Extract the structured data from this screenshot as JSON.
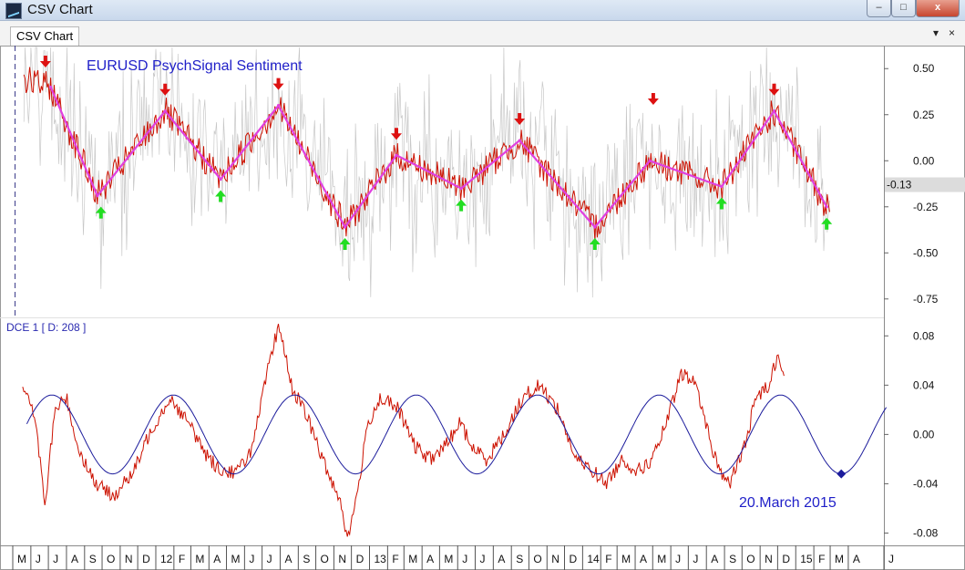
{
  "window": {
    "title": "CSV Chart",
    "tab_label": "CSV Chart",
    "min_label": "–",
    "max_label": "□",
    "close_label": "x",
    "menu_label": "▾",
    "tab_close_label": "×"
  },
  "icons": {
    "app": "chart-app-icon",
    "down_arrow": "red-down-arrow-icon",
    "up_arrow": "green-up-arrow-icon"
  },
  "colors": {
    "sentiment": "#cc1100",
    "zigzag": "#e040e0",
    "raw": "#c8c8c8",
    "cycle": "#1c1c9c",
    "down_arrow": "#dd1111",
    "up_arrow": "#22dd22",
    "title": "#1f1fc8"
  },
  "chart_data": {
    "type": "line",
    "title": "EURUSD PsychSignal Sentiment",
    "x_axis": {
      "labels": [
        "M",
        "J",
        "J",
        "A",
        "S",
        "O",
        "N",
        "D",
        "12",
        "F",
        "M",
        "A",
        "M",
        "J",
        "J",
        "A",
        "S",
        "O",
        "N",
        "D",
        "13",
        "F",
        "M",
        "A",
        "M",
        "J",
        "J",
        "A",
        "S",
        "O",
        "N",
        "D",
        "14",
        "F",
        "M",
        "A",
        "M",
        "J",
        "J",
        "A",
        "S",
        "O",
        "N",
        "D",
        "15",
        "F",
        "M",
        "A",
        "J"
      ],
      "start": "2011-05",
      "end": "2015-06"
    },
    "upper_panel": {
      "ylim": [
        -0.85,
        0.62
      ],
      "y_ticks": [
        "0.50",
        "0.25",
        "0.00",
        "-0.25",
        "-0.50",
        "-0.75"
      ],
      "last_value_label": "-0.13",
      "zigzag": [
        {
          "x": "2011-07-05",
          "y": 0.4
        },
        {
          "x": "2011-09-23",
          "y": -0.19
        },
        {
          "x": "2012-01-17",
          "y": 0.27
        },
        {
          "x": "2012-04-21",
          "y": -0.1
        },
        {
          "x": "2012-07-29",
          "y": 0.3
        },
        {
          "x": "2012-11-20",
          "y": -0.36
        },
        {
          "x": "2013-02-16",
          "y": 0.03
        },
        {
          "x": "2013-06-07",
          "y": -0.15
        },
        {
          "x": "2013-09-15",
          "y": 0.11
        },
        {
          "x": "2014-01-22",
          "y": -0.36
        },
        {
          "x": "2014-04-26",
          "y": 0.0
        },
        {
          "x": "2014-08-27",
          "y": -0.14
        },
        {
          "x": "2014-11-25",
          "y": 0.27
        },
        {
          "x": "2015-02-23",
          "y": -0.25
        }
      ],
      "down_arrows": [
        "2011-06-26",
        "2012-01-17",
        "2012-07-29",
        "2013-02-16",
        "2013-09-15",
        "2014-05-02",
        "2014-11-25"
      ],
      "up_arrows": [
        "2011-09-29",
        "2012-04-21",
        "2012-11-20",
        "2013-06-07",
        "2014-01-22",
        "2014-08-27",
        "2015-02-23"
      ]
    },
    "lower_panel": {
      "label": "DCE 1 [ D: 208 ]",
      "ylim": [
        -0.09,
        0.095
      ],
      "y_ticks": [
        "0.08",
        "0.04",
        "0.00",
        "-0.04",
        "-0.08"
      ],
      "cycle": {
        "period_days": 208,
        "amplitude": 0.032,
        "trough_date": "2015-03-20",
        "end_date": "2015-06-05"
      },
      "oscillator": [
        [
          "2011-05-18",
          0.04
        ],
        [
          "2011-06-10",
          0.01
        ],
        [
          "2011-06-25",
          -0.06
        ],
        [
          "2011-07-12",
          0.02
        ],
        [
          "2011-08-01",
          0.03
        ],
        [
          "2011-08-20",
          -0.01
        ],
        [
          "2011-09-20",
          -0.04
        ],
        [
          "2011-10-20",
          -0.05
        ],
        [
          "2011-11-25",
          -0.03
        ],
        [
          "2011-12-20",
          0.0
        ],
        [
          "2012-01-25",
          0.03
        ],
        [
          "2012-02-25",
          0.01
        ],
        [
          "2012-04-01",
          -0.02
        ],
        [
          "2012-04-25",
          -0.03
        ],
        [
          "2012-05-20",
          -0.03
        ],
        [
          "2012-06-15",
          -0.01
        ],
        [
          "2012-07-10",
          0.05
        ],
        [
          "2012-07-30",
          0.09
        ],
        [
          "2012-08-20",
          0.04
        ],
        [
          "2012-09-20",
          0.01
        ],
        [
          "2012-10-20",
          -0.03
        ],
        [
          "2012-11-10",
          -0.05
        ],
        [
          "2012-11-25",
          -0.085
        ],
        [
          "2012-12-10",
          -0.05
        ],
        [
          "2012-12-30",
          0.01
        ],
        [
          "2013-01-20",
          0.03
        ],
        [
          "2013-02-20",
          0.02
        ],
        [
          "2013-03-20",
          -0.01
        ],
        [
          "2013-04-15",
          -0.02
        ],
        [
          "2013-05-10",
          -0.01
        ],
        [
          "2013-06-05",
          0.01
        ],
        [
          "2013-06-25",
          -0.01
        ],
        [
          "2013-07-20",
          -0.02
        ],
        [
          "2013-08-20",
          0.0
        ],
        [
          "2013-09-20",
          0.03
        ],
        [
          "2013-10-20",
          0.04
        ],
        [
          "2013-11-20",
          0.02
        ],
        [
          "2013-12-20",
          -0.02
        ],
        [
          "2014-01-20",
          -0.03
        ],
        [
          "2014-02-10",
          -0.04
        ],
        [
          "2014-03-10",
          -0.02
        ],
        [
          "2014-04-05",
          -0.03
        ],
        [
          "2014-05-01",
          -0.02
        ],
        [
          "2014-05-25",
          0.01
        ],
        [
          "2014-06-20",
          0.05
        ],
        [
          "2014-07-15",
          0.04
        ],
        [
          "2014-08-10",
          -0.01
        ],
        [
          "2014-08-25",
          -0.03
        ],
        [
          "2014-09-10",
          -0.04
        ],
        [
          "2014-10-05",
          -0.01
        ],
        [
          "2014-10-25",
          0.03
        ],
        [
          "2014-11-15",
          0.04
        ],
        [
          "2014-12-01",
          0.065
        ],
        [
          "2014-12-12",
          0.05
        ]
      ]
    },
    "annotation": "20.March 2015"
  }
}
